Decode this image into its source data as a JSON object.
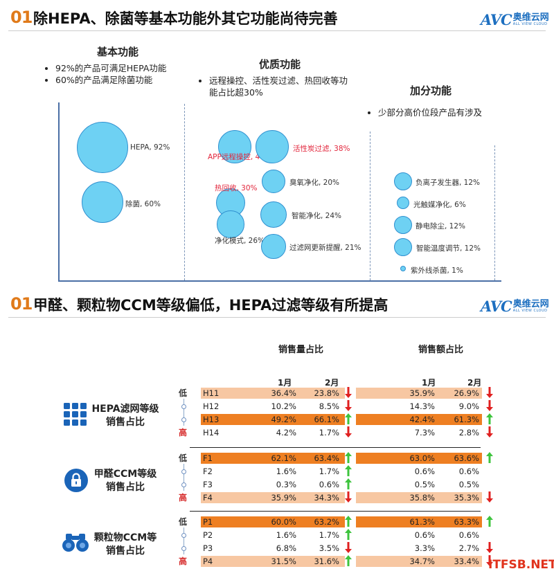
{
  "section1": {
    "num": "01",
    "title": "除HEPA、除菌等基本功能外其它功能尚待完善"
  },
  "section2": {
    "num": "01",
    "title": "甲醛、颗粒物CCM等级偏低，HEPA过滤等级有所提高"
  },
  "logo": {
    "avc": "AVC",
    "cn": "奥维云网",
    "en": "ALL VIEW CLOUD"
  },
  "columns": [
    {
      "head": "基本功能",
      "bullets": [
        "92%的产品可满足HEPA功能",
        "60%的产品满足除菌功能"
      ]
    },
    {
      "head": "优质功能",
      "bullets": [
        "远程操控、活性炭过滤、热回收等功",
        "能占比超30%"
      ]
    },
    {
      "head": "加分功能",
      "bullets": [
        "少部分高价位段产品有涉及"
      ]
    }
  ],
  "bubbles": [
    {
      "label": "HEPA, 92%",
      "value": 92,
      "color": "normal"
    },
    {
      "label": "除菌, 60%",
      "value": 60,
      "color": "normal"
    },
    {
      "label": "APP远程操控, 40%",
      "value": 40,
      "color": "red"
    },
    {
      "label": "活性炭过滤, 38%",
      "value": 38,
      "color": "red"
    },
    {
      "label": "臭氧净化, 20%",
      "value": 20,
      "color": "normal"
    },
    {
      "label": "热回收, 30%",
      "value": 30,
      "color": "red"
    },
    {
      "label": "智能净化, 24%",
      "value": 24,
      "color": "normal"
    },
    {
      "label": "净化模式, 26%",
      "value": 26,
      "color": "normal"
    },
    {
      "label": "过滤网更新提醒, 21%",
      "value": 21,
      "color": "normal"
    },
    {
      "label": "负离子发生器, 12%",
      "value": 12,
      "color": "normal"
    },
    {
      "label": "光触媒净化, 6%",
      "value": 6,
      "color": "normal"
    },
    {
      "label": "静电除尘, 12%",
      "value": 12,
      "color": "normal"
    },
    {
      "label": "智能温度调节, 12%",
      "value": 12,
      "color": "normal"
    },
    {
      "label": "紫外线杀菌, 1%",
      "value": 1,
      "color": "normal"
    }
  ],
  "table": {
    "vol_head": "销售量占比",
    "amt_head": "销售额占比",
    "month1": "1月",
    "month2": "2月",
    "low": "低",
    "high": "高",
    "groups": [
      {
        "title1": "HEPA滤网等级",
        "title2": "销售占比",
        "icon": "grid-icon",
        "rows": [
          {
            "name": "H11",
            "v1": "36.4%",
            "v2": "23.8%",
            "va": "down",
            "a1": "35.9%",
            "a2": "26.9%",
            "aa": "down",
            "bar": "light"
          },
          {
            "name": "H12",
            "v1": "10.2%",
            "v2": "8.5%",
            "va": "down",
            "a1": "14.3%",
            "a2": "9.0%",
            "aa": "down",
            "bar": "none"
          },
          {
            "name": "H13",
            "v1": "49.2%",
            "v2": "66.1%",
            "va": "up",
            "a1": "42.4%",
            "a2": "61.3%",
            "aa": "up",
            "bar": "dark"
          },
          {
            "name": "H14",
            "v1": "4.2%",
            "v2": "1.7%",
            "va": "down",
            "a1": "7.3%",
            "a2": "2.8%",
            "aa": "down",
            "bar": "none"
          }
        ]
      },
      {
        "title1": "甲醛CCM等级",
        "title2": "销售占比",
        "icon": "lock-icon",
        "rows": [
          {
            "name": "F1",
            "v1": "62.1%",
            "v2": "63.4%",
            "va": "up",
            "a1": "63.0%",
            "a2": "63.6%",
            "aa": "up",
            "bar": "dark"
          },
          {
            "name": "F2",
            "v1": "1.6%",
            "v2": "1.7%",
            "va": "up",
            "a1": "0.6%",
            "a2": "0.6%",
            "aa": "none",
            "bar": "none"
          },
          {
            "name": "F3",
            "v1": "0.3%",
            "v2": "0.6%",
            "va": "up",
            "a1": "0.5%",
            "a2": "0.5%",
            "aa": "none",
            "bar": "none"
          },
          {
            "name": "F4",
            "v1": "35.9%",
            "v2": "34.3%",
            "va": "down",
            "a1": "35.8%",
            "a2": "35.3%",
            "aa": "down",
            "bar": "light"
          }
        ]
      },
      {
        "title1": "颗粒物CCM等",
        "title2": "销售占比",
        "icon": "binoculars-icon",
        "rows": [
          {
            "name": "P1",
            "v1": "60.0%",
            "v2": "63.2%",
            "va": "up",
            "a1": "61.3%",
            "a2": "63.3%",
            "aa": "up",
            "bar": "dark"
          },
          {
            "name": "P2",
            "v1": "1.6%",
            "v2": "1.7%",
            "va": "up",
            "a1": "0.6%",
            "a2": "0.6%",
            "aa": "none",
            "bar": "none"
          },
          {
            "name": "P3",
            "v1": "6.8%",
            "v2": "3.5%",
            "va": "down",
            "a1": "3.3%",
            "a2": "2.7%",
            "aa": "down",
            "bar": "none"
          },
          {
            "name": "P4",
            "v1": "31.5%",
            "v2": "31.6%",
            "va": "up",
            "a1": "34.7%",
            "a2": "33.4%",
            "aa": "down",
            "bar": "light"
          }
        ]
      }
    ]
  },
  "watermark": "ITFSB.NET",
  "colors": {
    "dark": "#ee7f22",
    "light": "#f7c7a2",
    "up": "#3ec43e",
    "down": "#e02020",
    "bubble": "#6ed1f3",
    "accent": "#e07a1a"
  }
}
